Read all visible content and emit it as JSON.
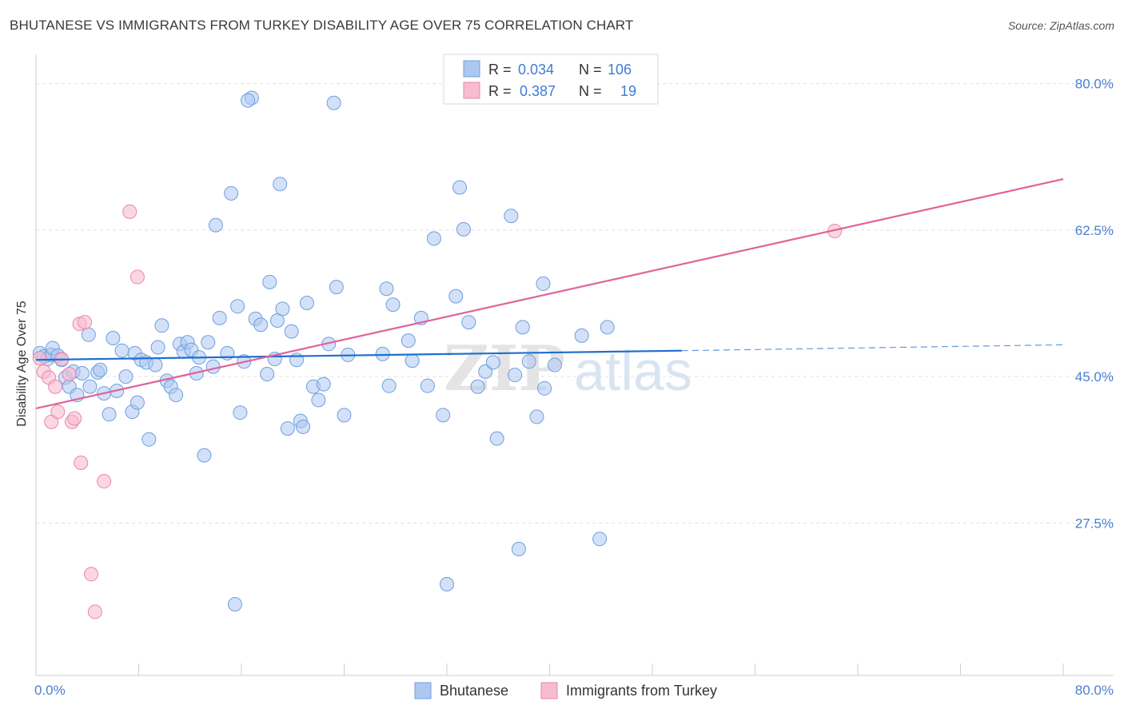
{
  "title": "BHUTANESE VS IMMIGRANTS FROM TURKEY DISABILITY AGE OVER 75 CORRELATION CHART",
  "source": "Source: ZipAtlas.com",
  "watermark": {
    "zip": "ZIP",
    "atlas": "atlas"
  },
  "legend_box": {
    "rows": [
      {
        "r_label": "R =",
        "r_value": "0.034",
        "n_label": "N =",
        "n_value": "106"
      },
      {
        "r_label": "R =",
        "r_value": "0.387",
        "n_label": "N =",
        "n_value": "19"
      }
    ]
  },
  "bottom_legend": [
    "Bhutanese",
    "Immigrants from Turkey"
  ],
  "colors": {
    "blue_fill": "#adc8f0",
    "blue_stroke": "#6f9ee0",
    "blue_line": "#1f6fcf",
    "pink_fill": "#f7bcd0",
    "pink_stroke": "#ec86a8",
    "pink_line": "#e0639a",
    "tick_text": "#4a7fd0",
    "grid": "#e0e0e0"
  },
  "chart_data": {
    "type": "scatter",
    "title": "BHUTANESE VS IMMIGRANTS FROM TURKEY DISABILITY AGE OVER 75 CORRELATION CHART",
    "xlabel": "",
    "ylabel": "Disability Age Over 75",
    "xlim": [
      0,
      80
    ],
    "ylim": [
      9.3,
      83.5
    ],
    "x_tick_labels": [
      "0.0%",
      "80.0%"
    ],
    "y_ticks": [
      27.5,
      45.0,
      62.5,
      80.0
    ],
    "y_tick_labels": [
      "27.5%",
      "45.0%",
      "62.5%",
      "80.0%"
    ],
    "grid": true,
    "legend_position": "top-center",
    "series": [
      {
        "name": "Bhutanese",
        "R": 0.034,
        "N": 106,
        "trend": {
          "x": [
            0,
            50.3
          ],
          "y": [
            47.0,
            48.1
          ],
          "dashed_to": {
            "x": 80,
            "y": 48.8
          }
        },
        "points": [
          [
            0.3,
            47.8
          ],
          [
            0.6,
            47.4
          ],
          [
            0.9,
            47.1
          ],
          [
            1.2,
            47.6
          ],
          [
            1.3,
            48.4
          ],
          [
            1.7,
            47.5
          ],
          [
            2.0,
            47.0
          ],
          [
            2.3,
            44.9
          ],
          [
            2.6,
            43.8
          ],
          [
            2.9,
            45.6
          ],
          [
            3.2,
            42.8
          ],
          [
            3.6,
            45.4
          ],
          [
            4.1,
            50.0
          ],
          [
            4.2,
            43.8
          ],
          [
            4.8,
            45.5
          ],
          [
            5.0,
            45.8
          ],
          [
            5.3,
            43.0
          ],
          [
            5.7,
            40.5
          ],
          [
            6.0,
            49.6
          ],
          [
            6.3,
            43.3
          ],
          [
            6.7,
            48.1
          ],
          [
            7.0,
            45.0
          ],
          [
            7.5,
            40.8
          ],
          [
            7.7,
            47.8
          ],
          [
            7.9,
            41.9
          ],
          [
            8.2,
            47.0
          ],
          [
            8.6,
            46.7
          ],
          [
            8.8,
            37.5
          ],
          [
            9.3,
            46.4
          ],
          [
            9.5,
            48.5
          ],
          [
            9.8,
            51.1
          ],
          [
            10.2,
            44.5
          ],
          [
            10.5,
            43.8
          ],
          [
            10.9,
            42.8
          ],
          [
            11.2,
            48.9
          ],
          [
            11.5,
            48.0
          ],
          [
            11.8,
            49.1
          ],
          [
            12.1,
            48.2
          ],
          [
            12.5,
            45.4
          ],
          [
            12.7,
            47.3
          ],
          [
            13.1,
            35.6
          ],
          [
            13.4,
            49.1
          ],
          [
            13.8,
            46.2
          ],
          [
            14.0,
            63.1
          ],
          [
            14.3,
            52.0
          ],
          [
            14.9,
            47.8
          ],
          [
            15.2,
            66.9
          ],
          [
            15.5,
            17.8
          ],
          [
            15.7,
            53.4
          ],
          [
            15.9,
            40.7
          ],
          [
            16.2,
            46.8
          ],
          [
            16.8,
            78.3
          ],
          [
            17.1,
            51.9
          ],
          [
            17.5,
            51.2
          ],
          [
            18.0,
            45.3
          ],
          [
            18.2,
            56.3
          ],
          [
            18.6,
            47.1
          ],
          [
            18.8,
            51.7
          ],
          [
            19.0,
            68.0
          ],
          [
            19.2,
            53.1
          ],
          [
            19.6,
            38.8
          ],
          [
            19.9,
            50.4
          ],
          [
            20.3,
            47.0
          ],
          [
            20.6,
            39.7
          ],
          [
            20.8,
            39.0
          ],
          [
            21.1,
            53.8
          ],
          [
            21.6,
            43.8
          ],
          [
            22.0,
            42.2
          ],
          [
            22.4,
            44.1
          ],
          [
            22.8,
            48.9
          ],
          [
            23.2,
            77.7
          ],
          [
            23.4,
            55.7
          ],
          [
            24.0,
            40.4
          ],
          [
            24.3,
            47.6
          ],
          [
            27.0,
            47.7
          ],
          [
            27.3,
            55.5
          ],
          [
            27.5,
            43.9
          ],
          [
            27.8,
            53.6
          ],
          [
            29.0,
            49.3
          ],
          [
            29.3,
            46.9
          ],
          [
            30.0,
            52.0
          ],
          [
            30.5,
            43.9
          ],
          [
            31.0,
            61.5
          ],
          [
            31.7,
            40.4
          ],
          [
            32.0,
            20.2
          ],
          [
            32.7,
            54.6
          ],
          [
            33.0,
            67.6
          ],
          [
            33.3,
            62.6
          ],
          [
            33.7,
            51.5
          ],
          [
            34.4,
            43.8
          ],
          [
            35.0,
            45.6
          ],
          [
            35.6,
            46.7
          ],
          [
            35.9,
            37.6
          ],
          [
            37.0,
            64.2
          ],
          [
            37.3,
            45.2
          ],
          [
            37.6,
            24.4
          ],
          [
            37.9,
            50.9
          ],
          [
            38.4,
            46.8
          ],
          [
            39.0,
            40.2
          ],
          [
            39.5,
            56.1
          ],
          [
            39.6,
            43.6
          ],
          [
            40.4,
            46.4
          ],
          [
            42.5,
            49.9
          ],
          [
            43.9,
            25.6
          ],
          [
            44.5,
            50.9
          ],
          [
            16.5,
            78.0
          ]
        ]
      },
      {
        "name": "Immigrants from Turkey",
        "R": 0.387,
        "N": 19,
        "trend": {
          "x": [
            0,
            80
          ],
          "y": [
            41.2,
            68.6
          ]
        },
        "points": [
          [
            0.3,
            47.2
          ],
          [
            0.6,
            45.6
          ],
          [
            1.0,
            44.9
          ],
          [
            1.2,
            39.6
          ],
          [
            1.5,
            43.8
          ],
          [
            1.7,
            40.8
          ],
          [
            2.0,
            47.1
          ],
          [
            2.6,
            45.3
          ],
          [
            2.8,
            39.6
          ],
          [
            3.0,
            40.0
          ],
          [
            3.4,
            51.3
          ],
          [
            3.5,
            34.7
          ],
          [
            3.8,
            51.5
          ],
          [
            4.3,
            21.4
          ],
          [
            4.6,
            16.9
          ],
          [
            5.3,
            32.5
          ],
          [
            7.3,
            64.7
          ],
          [
            7.9,
            56.9
          ],
          [
            62.2,
            62.4
          ]
        ]
      }
    ]
  }
}
